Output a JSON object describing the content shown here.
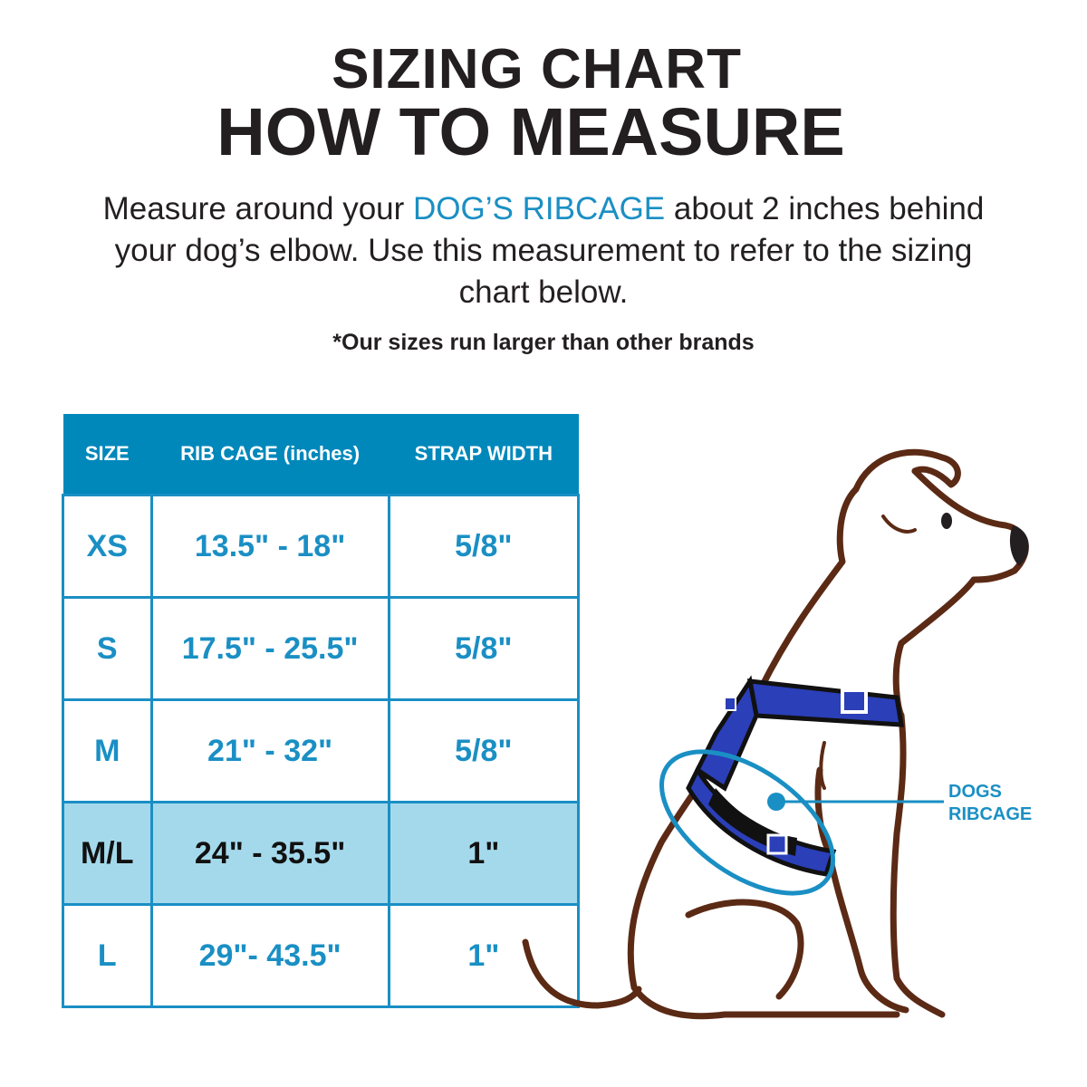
{
  "title_line1": "SIZING CHART",
  "title_line2": "HOW TO MEASURE",
  "intro": {
    "before": "Measure around your ",
    "highlight": "DOG’S RIBCAGE",
    "after": " about 2 inches behind your dog’s  elbow. Use this measurement to refer to the sizing chart below."
  },
  "note": "*Our sizes run larger than other brands",
  "table": {
    "headers": [
      "SIZE",
      "RIB CAGE (inches)",
      "STRAP WIDTH"
    ],
    "rows": [
      {
        "size": "XS",
        "rib": "13.5\" - 18\"",
        "strap": "5/8\""
      },
      {
        "size": "S",
        "rib": "17.5\" - 25.5\"",
        "strap": "5/8\""
      },
      {
        "size": "M",
        "rib": "21\" - 32\"",
        "strap": "5/8\""
      },
      {
        "size": "M/L",
        "rib": "24\" - 35.5\"",
        "strap": "1\"",
        "highlighted": true
      },
      {
        "size": "L",
        "rib": "29\"- 43.5\"",
        "strap": "1\""
      }
    ]
  },
  "illustration": {
    "label_line1": "DOGS",
    "label_line2": "RIBCAGE"
  },
  "colors": {
    "accent": "#1a8fc4",
    "header": "#0088bb",
    "highlight_row": "#a4d9ec",
    "dog_outline": "#5b2a15",
    "harness": "#2b3fb8"
  }
}
